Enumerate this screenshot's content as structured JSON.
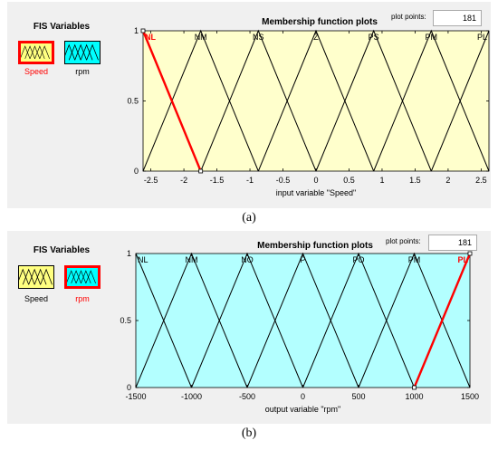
{
  "panels": [
    {
      "caption": "(a)",
      "fis_title": "FIS Variables",
      "variables": [
        {
          "name": "Speed",
          "selected": true,
          "fill": "#ffff80"
        },
        {
          "name": "rpm",
          "selected": false,
          "fill": "#00ffff"
        }
      ],
      "mf_title": "Membership function plots",
      "plot_points_label": "plot points:",
      "plot_points_value": "181",
      "plot_bg": "#ffffcc",
      "axis_label": "input variable \"Speed\"",
      "chart_data": {
        "type": "line",
        "xlim": [
          -2.618,
          2.618
        ],
        "ylim": [
          0,
          1
        ],
        "xticks": [
          "-2.5",
          "-2",
          "-1.5",
          "-1",
          "-0.5",
          "0",
          "0.5",
          "1",
          "1.5",
          "2",
          "2.5"
        ],
        "xtick_values": [
          -2.5,
          -2,
          -1.5,
          -1,
          -0.5,
          0,
          0.5,
          1,
          1.5,
          2,
          2.5
        ],
        "yticks": [
          "0",
          "0.5",
          "1"
        ],
        "ytick_values": [
          0,
          0.5,
          1
        ],
        "highlighted": "NL",
        "series": [
          {
            "name": "NL",
            "points": [
              [
                -2.618,
                1
              ],
              [
                -1.745,
                0
              ]
            ]
          },
          {
            "name": "NM",
            "points": [
              [
                -2.618,
                0
              ],
              [
                -1.745,
                1
              ],
              [
                -0.873,
                0
              ]
            ]
          },
          {
            "name": "NS",
            "points": [
              [
                -1.745,
                0
              ],
              [
                -0.873,
                1
              ],
              [
                0,
                0
              ]
            ]
          },
          {
            "name": "Z",
            "points": [
              [
                -0.873,
                0
              ],
              [
                0,
                1
              ],
              [
                0.873,
                0
              ]
            ]
          },
          {
            "name": "PS",
            "points": [
              [
                0,
                0
              ],
              [
                0.873,
                1
              ],
              [
                1.745,
                0
              ]
            ]
          },
          {
            "name": "PM",
            "points": [
              [
                0.873,
                0
              ],
              [
                1.745,
                1
              ],
              [
                2.618,
                0
              ]
            ]
          },
          {
            "name": "PL",
            "points": [
              [
                1.745,
                0
              ],
              [
                2.618,
                1
              ]
            ]
          }
        ]
      }
    },
    {
      "caption": "(b)",
      "fis_title": "FIS Variables",
      "variables": [
        {
          "name": "Speed",
          "selected": false,
          "fill": "#ffff80"
        },
        {
          "name": "rpm",
          "selected": true,
          "fill": "#00ffff"
        }
      ],
      "mf_title": "Membership function plots",
      "plot_points_label": "plot points:",
      "plot_points_value": "181",
      "plot_bg": "#b3ffff",
      "axis_label": "output variable \"rpm\"",
      "chart_data": {
        "type": "line",
        "xlim": [
          -1500,
          1500
        ],
        "ylim": [
          0,
          1
        ],
        "xticks": [
          "-1500",
          "-1000",
          "-500",
          "0",
          "500",
          "1000",
          "1500"
        ],
        "xtick_values": [
          -1500,
          -1000,
          -500,
          0,
          500,
          1000,
          1500
        ],
        "yticks": [
          "0",
          "0.5",
          "1"
        ],
        "ytick_values": [
          0,
          0.5,
          1
        ],
        "highlighted": "PL",
        "series": [
          {
            "name": "NL",
            "points": [
              [
                -1500,
                1
              ],
              [
                -1000,
                0
              ]
            ]
          },
          {
            "name": "NM",
            "points": [
              [
                -1500,
                0
              ],
              [
                -1000,
                1
              ],
              [
                -500,
                0
              ]
            ]
          },
          {
            "name": "NO",
            "points": [
              [
                -1000,
                0
              ],
              [
                -500,
                1
              ],
              [
                0,
                0
              ]
            ]
          },
          {
            "name": "P",
            "points": [
              [
                -500,
                0
              ],
              [
                0,
                1
              ],
              [
                500,
                0
              ]
            ]
          },
          {
            "name": "PO",
            "points": [
              [
                0,
                0
              ],
              [
                500,
                1
              ],
              [
                1000,
                0
              ]
            ]
          },
          {
            "name": "PM",
            "points": [
              [
                500,
                0
              ],
              [
                1000,
                1
              ],
              [
                1500,
                0
              ]
            ]
          },
          {
            "name": "PL",
            "points": [
              [
                1000,
                0
              ],
              [
                1500,
                1
              ]
            ]
          }
        ]
      }
    }
  ],
  "colors": {
    "highlight": "#ff0000",
    "line": "#000000",
    "panel_bg": "#f0f0f0"
  }
}
